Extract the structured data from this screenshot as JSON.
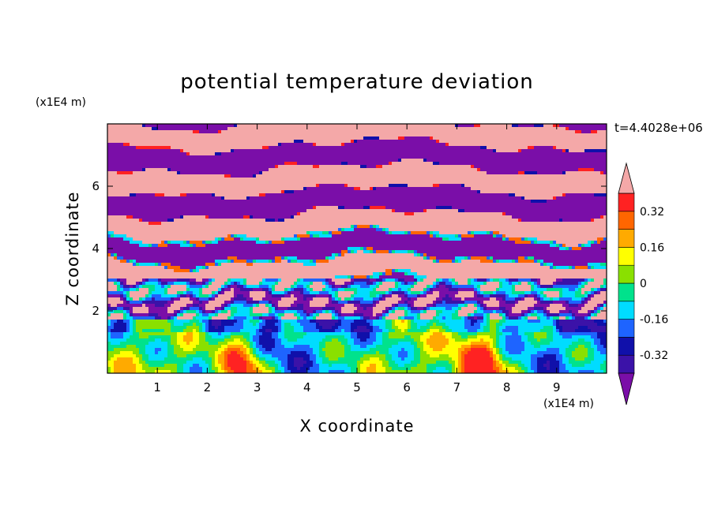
{
  "chart_data": {
    "type": "heatmap",
    "title": "potential temperature deviation",
    "xlabel": "X coordinate",
    "ylabel": "Z coordinate",
    "x_unit": "(x1E4 m)",
    "y_unit": "(x1E4 m)",
    "time_label": "t=4.4028e+06",
    "xlim": [
      0,
      10
    ],
    "ylim": [
      0,
      8
    ],
    "x_ticks": [
      1,
      2,
      3,
      4,
      5,
      6,
      7,
      8,
      9
    ],
    "y_ticks": [
      2,
      4,
      6
    ],
    "colorbar": {
      "levels": [
        -0.4,
        -0.32,
        -0.24,
        -0.16,
        -0.08,
        0,
        0.08,
        0.16,
        0.24,
        0.32,
        0.4
      ],
      "tick_labels": [
        "0.32",
        "0.16",
        "0",
        "-0.16",
        "-0.32"
      ],
      "tick_values": [
        0.32,
        0.16,
        0,
        -0.16,
        -0.32
      ],
      "colors": [
        "#7a0ea8",
        "#3b12a8",
        "#1010aa",
        "#1e64ff",
        "#00dcff",
        "#00e28c",
        "#8ae000",
        "#ffff00",
        "#ffaa00",
        "#ff6600",
        "#ff2222",
        "#f4a8a8"
      ],
      "extend": "both"
    },
    "field_description": "Alternating pink and purple bands aloft (z above about 4), mixed turbulent layer around z 2-4, warm yellow/orange/red plumes near the ground at x about 2.7 and 7.5"
  }
}
